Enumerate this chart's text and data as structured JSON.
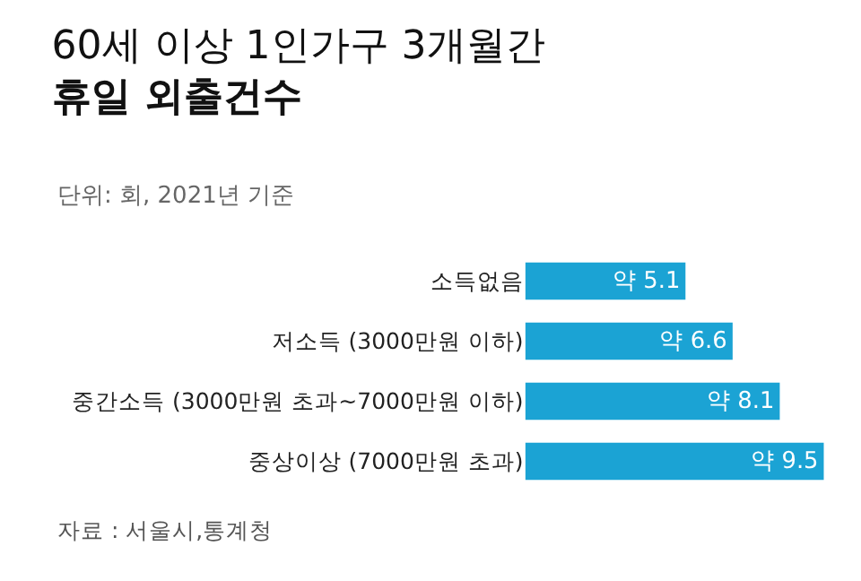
{
  "chart_data": {
    "type": "bar",
    "orientation": "horizontal",
    "title": "60세 이상 1인가구 3개월간\n휴일 외출건수",
    "subtitle": "단위: 회, 2021년 기준",
    "categories": [
      "소득없음",
      "저소득 (3000만원 이하)",
      "중간소득 (3000만원 초과~7000만원 이하)",
      "중상이상 (7000만원 초과)"
    ],
    "values": [
      5.1,
      6.6,
      8.1,
      9.5
    ],
    "value_labels": [
      "약 5.1",
      "약 6.6",
      "약 8.1",
      "약 9.5"
    ],
    "color": "#1ba3d4",
    "tick_labels": "y",
    "annotations": [
      "자료 : 서울시,통계청"
    ]
  }
}
